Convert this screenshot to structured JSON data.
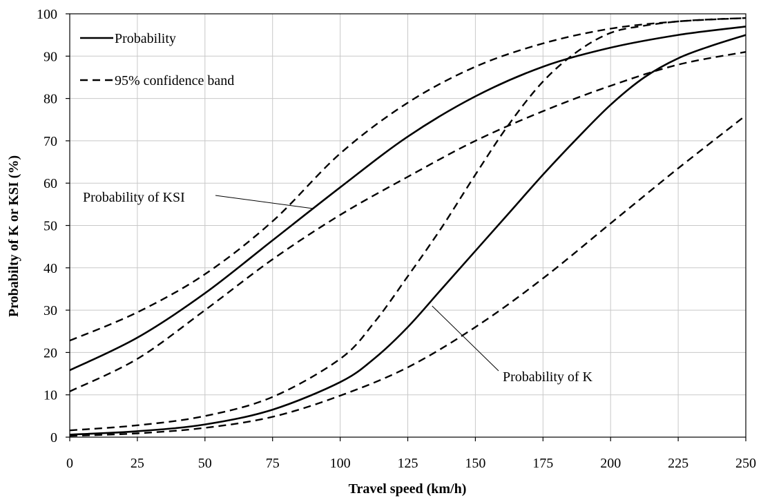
{
  "chart_data": {
    "type": "line",
    "xlabel": "Travel speed (km/h)",
    "ylabel": "Probabilty of K or KSI (%)",
    "xlim": [
      0,
      250
    ],
    "ylim": [
      0,
      100
    ],
    "xticks": [
      0,
      25,
      50,
      75,
      100,
      125,
      150,
      175,
      200,
      225,
      250
    ],
    "yticks": [
      0,
      10,
      20,
      30,
      40,
      50,
      60,
      70,
      80,
      90,
      100
    ],
    "grid": true,
    "legend": {
      "position": "top-left",
      "entries": [
        {
          "label": "Probability",
          "style": "solid"
        },
        {
          "label": "95% confidence band",
          "style": "dashed"
        }
      ]
    },
    "annotations": [
      {
        "text": "Probability of KSI",
        "series": "ksi"
      },
      {
        "text": "Probability of K",
        "series": "k"
      }
    ],
    "series": [
      {
        "id": "ksi",
        "style": "solid",
        "x": [
          0,
          25,
          50,
          75,
          100,
          125,
          150,
          175,
          200,
          225,
          250
        ],
        "y": [
          15.8,
          23.5,
          34,
          46.5,
          59,
          71,
          80.5,
          87.5,
          92,
          95,
          97
        ]
      },
      {
        "id": "ksi-upper",
        "style": "dashed",
        "x": [
          0,
          25,
          50,
          75,
          100,
          125,
          150,
          175,
          200,
          225,
          250
        ],
        "y": [
          22.8,
          29.5,
          38.5,
          51,
          67,
          79,
          87.5,
          93,
          96.5,
          98.2,
          99
        ]
      },
      {
        "id": "ksi-lower",
        "style": "dashed",
        "x": [
          0,
          25,
          50,
          75,
          100,
          125,
          150,
          175,
          200,
          225,
          250
        ],
        "y": [
          10.8,
          18.5,
          30,
          42,
          52.5,
          61.5,
          70,
          77,
          83,
          88,
          91
        ]
      },
      {
        "id": "k",
        "style": "solid",
        "x": [
          0,
          25,
          50,
          75,
          100,
          112.5,
          125,
          137.5,
          150,
          162.5,
          175,
          187.5,
          200,
          212.5,
          225,
          237.5,
          250
        ],
        "y": [
          0.6,
          1.4,
          3.0,
          6.5,
          13,
          18.5,
          26,
          35,
          44,
          53,
          62,
          70.5,
          78.5,
          85,
          89.5,
          92.5,
          95
        ]
      },
      {
        "id": "k-upper",
        "style": "dashed",
        "x": [
          0,
          25,
          50,
          75,
          100,
          112.5,
          125,
          137.5,
          150,
          162.5,
          175,
          187.5,
          200,
          212.5,
          225,
          237.5,
          250
        ],
        "y": [
          1.6,
          2.8,
          5.0,
          9.5,
          18.5,
          27,
          38,
          49.5,
          62,
          74,
          84,
          91,
          95.5,
          97.2,
          98.2,
          98.7,
          99
        ]
      },
      {
        "id": "k-lower",
        "style": "dashed",
        "x": [
          0,
          25,
          50,
          75,
          100,
          125,
          150,
          175,
          200,
          225,
          250
        ],
        "y": [
          0.3,
          0.9,
          2.2,
          4.8,
          9.8,
          16.5,
          26,
          37.5,
          50.5,
          63.5,
          76
        ]
      }
    ]
  }
}
